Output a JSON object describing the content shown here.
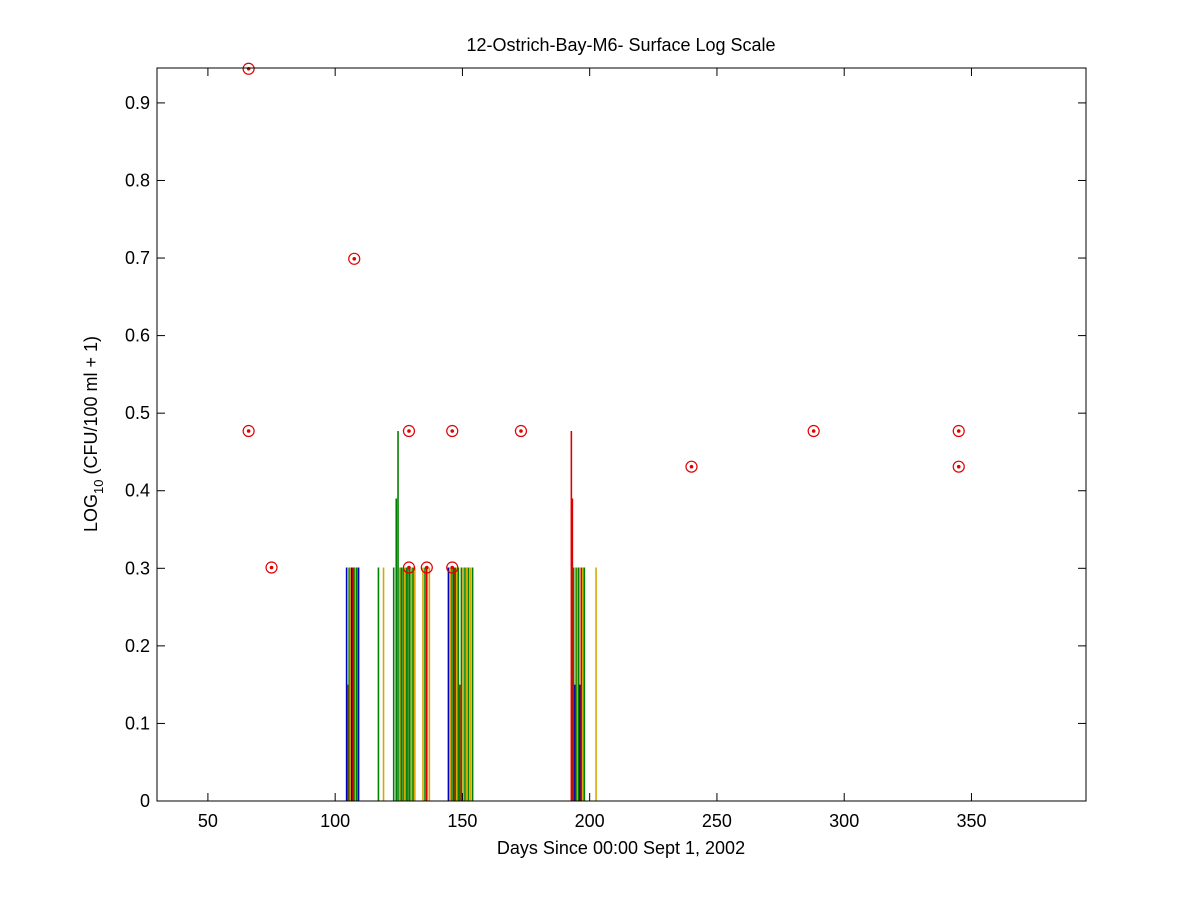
{
  "chart_data": {
    "type": "scatter",
    "title": "12-Ostrich-Bay-M6- Surface Log Scale",
    "xlabel": "Days Since 00:00 Sept 1, 2002",
    "ylabel": {
      "prefix": "LOG",
      "subscript": "10",
      "suffix": " (CFU/100 ml + 1)"
    },
    "xlim": [
      30,
      395
    ],
    "ylim": [
      0,
      0.945
    ],
    "xticks": [
      50,
      100,
      150,
      200,
      250,
      300,
      350
    ],
    "yticks": [
      0,
      0.1,
      0.2,
      0.3,
      0.4,
      0.5,
      0.6,
      0.7,
      0.8,
      0.9
    ],
    "grid": false,
    "colors": {
      "marker": "#e00000",
      "red_bar": "#e00000",
      "green_bar": "#008000",
      "blue_bar": "#0000c0",
      "yellow_bar": "#d8a800"
    },
    "points": [
      {
        "x": 66,
        "y": 0.944
      },
      {
        "x": 66,
        "y": 0.477
      },
      {
        "x": 75,
        "y": 0.301
      },
      {
        "x": 107.5,
        "y": 0.699
      },
      {
        "x": 129,
        "y": 0.477
      },
      {
        "x": 129,
        "y": 0.301
      },
      {
        "x": 136,
        "y": 0.301
      },
      {
        "x": 146,
        "y": 0.477
      },
      {
        "x": 146,
        "y": 0.301
      },
      {
        "x": 173,
        "y": 0.477
      },
      {
        "x": 240,
        "y": 0.431
      },
      {
        "x": 288,
        "y": 0.477
      },
      {
        "x": 345,
        "y": 0.477
      },
      {
        "x": 345,
        "y": 0.431
      }
    ],
    "bars": [
      {
        "x": 104.5,
        "y": 0.301,
        "color": "blue"
      },
      {
        "x": 105.0,
        "y": 0.15,
        "color": "red"
      },
      {
        "x": 105.5,
        "y": 0.301,
        "color": "green"
      },
      {
        "x": 106.0,
        "y": 0.301,
        "color": "yellow"
      },
      {
        "x": 106.5,
        "y": 0.301,
        "color": "blue"
      },
      {
        "x": 107.0,
        "y": 0.301,
        "color": "red"
      },
      {
        "x": 107.5,
        "y": 0.301,
        "color": "green"
      },
      {
        "x": 108.0,
        "y": 0.301,
        "color": "yellow"
      },
      {
        "x": 108.5,
        "y": 0.301,
        "color": "green"
      },
      {
        "x": 109.2,
        "y": 0.301,
        "color": "blue"
      },
      {
        "x": 117.0,
        "y": 0.301,
        "color": "green"
      },
      {
        "x": 119.0,
        "y": 0.301,
        "color": "yellow"
      },
      {
        "x": 123.0,
        "y": 0.301,
        "color": "green"
      },
      {
        "x": 124.0,
        "y": 0.39,
        "color": "green"
      },
      {
        "x": 124.7,
        "y": 0.477,
        "color": "green"
      },
      {
        "x": 125.4,
        "y": 0.301,
        "color": "yellow"
      },
      {
        "x": 126.0,
        "y": 0.301,
        "color": "green"
      },
      {
        "x": 126.7,
        "y": 0.301,
        "color": "green"
      },
      {
        "x": 127.3,
        "y": 0.301,
        "color": "yellow"
      },
      {
        "x": 128.0,
        "y": 0.301,
        "color": "green"
      },
      {
        "x": 128.6,
        "y": 0.301,
        "color": "green"
      },
      {
        "x": 129.3,
        "y": 0.301,
        "color": "green"
      },
      {
        "x": 130.0,
        "y": 0.301,
        "color": "yellow"
      },
      {
        "x": 130.6,
        "y": 0.301,
        "color": "green"
      },
      {
        "x": 131.3,
        "y": 0.301,
        "color": "yellow"
      },
      {
        "x": 134.5,
        "y": 0.301,
        "color": "yellow"
      },
      {
        "x": 135.3,
        "y": 0.301,
        "color": "green"
      },
      {
        "x": 136.0,
        "y": 0.301,
        "color": "red"
      },
      {
        "x": 137.0,
        "y": 0.301,
        "color": "yellow"
      },
      {
        "x": 144.5,
        "y": 0.301,
        "color": "blue"
      },
      {
        "x": 145.2,
        "y": 0.301,
        "color": "yellow"
      },
      {
        "x": 145.9,
        "y": 0.301,
        "color": "green"
      },
      {
        "x": 146.6,
        "y": 0.301,
        "color": "red"
      },
      {
        "x": 147.2,
        "y": 0.301,
        "color": "green"
      },
      {
        "x": 147.8,
        "y": 0.301,
        "color": "yellow"
      },
      {
        "x": 148.4,
        "y": 0.301,
        "color": "green"
      },
      {
        "x": 149.0,
        "y": 0.15,
        "color": "red"
      },
      {
        "x": 149.6,
        "y": 0.301,
        "color": "green"
      },
      {
        "x": 150.3,
        "y": 0.301,
        "color": "yellow"
      },
      {
        "x": 151.0,
        "y": 0.301,
        "color": "green"
      },
      {
        "x": 151.7,
        "y": 0.301,
        "color": "yellow"
      },
      {
        "x": 152.4,
        "y": 0.301,
        "color": "green"
      },
      {
        "x": 153.2,
        "y": 0.301,
        "color": "yellow"
      },
      {
        "x": 154.0,
        "y": 0.301,
        "color": "green"
      },
      {
        "x": 192.8,
        "y": 0.477,
        "color": "red"
      },
      {
        "x": 193.2,
        "y": 0.39,
        "color": "red"
      },
      {
        "x": 193.7,
        "y": 0.301,
        "color": "green"
      },
      {
        "x": 194.2,
        "y": 0.15,
        "color": "blue"
      },
      {
        "x": 194.7,
        "y": 0.301,
        "color": "green"
      },
      {
        "x": 195.2,
        "y": 0.301,
        "color": "yellow"
      },
      {
        "x": 195.7,
        "y": 0.301,
        "color": "green"
      },
      {
        "x": 196.2,
        "y": 0.15,
        "color": "blue"
      },
      {
        "x": 196.7,
        "y": 0.301,
        "color": "red"
      },
      {
        "x": 197.3,
        "y": 0.301,
        "color": "yellow"
      },
      {
        "x": 197.9,
        "y": 0.301,
        "color": "green"
      },
      {
        "x": 202.5,
        "y": 0.301,
        "color": "yellow"
      }
    ]
  }
}
